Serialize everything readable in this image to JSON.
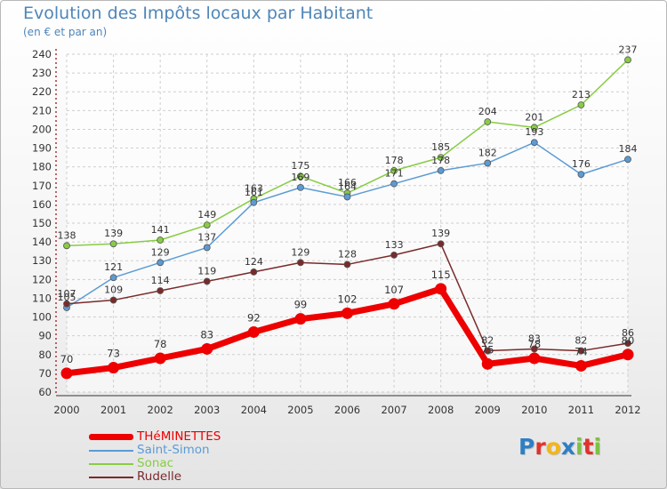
{
  "header": {
    "title": "Evolution des Impôts locaux par Habitant",
    "subtitle": "(en € et par an)"
  },
  "brand": {
    "name": "Proxiti",
    "letters": [
      {
        "ch": "P",
        "color": "#2e7fc4"
      },
      {
        "ch": "r",
        "color": "#e0322c"
      },
      {
        "ch": "o",
        "color": "#f3b51b"
      },
      {
        "ch": "x",
        "color": "#2e7fc4"
      },
      {
        "ch": "i",
        "color": "#7cc242"
      },
      {
        "ch": "t",
        "color": "#e0322c"
      },
      {
        "ch": "i",
        "color": "#7cc242"
      }
    ]
  },
  "chart_data": {
    "type": "line",
    "title": "Evolution des Impôts locaux par Habitant",
    "subtitle": "(en € et par an)",
    "xlabel": "",
    "ylabel": "",
    "x": [
      2000,
      2001,
      2002,
      2003,
      2004,
      2005,
      2006,
      2007,
      2008,
      2009,
      2010,
      2011,
      2012
    ],
    "x_tick_labels": [
      "2000",
      "2001",
      "2002",
      "2003",
      "2004",
      "2005",
      "2006",
      "2007",
      "2008",
      "2009",
      "2010",
      "2011",
      "2012"
    ],
    "ylim": [
      60,
      240
    ],
    "y_ticks": [
      60,
      70,
      80,
      90,
      100,
      110,
      120,
      130,
      140,
      150,
      160,
      170,
      180,
      190,
      200,
      210,
      220,
      230,
      240
    ],
    "grid": true,
    "legend_position": "bottom-left",
    "series": [
      {
        "name": "Sonac",
        "color": "#88cc44",
        "values": [
          138,
          139,
          141,
          149,
          163,
          175,
          166,
          178,
          185,
          204,
          201,
          213,
          237
        ],
        "labels": [
          "138",
          "139",
          "141",
          "149",
          "163",
          "175",
          "166",
          "178",
          "185",
          "204",
          "201",
          "213",
          "237"
        ]
      },
      {
        "name": "Saint-Simon",
        "color": "#5b9bd5",
        "values": [
          105,
          121,
          129,
          137,
          161,
          169,
          164,
          171,
          178,
          182,
          193,
          176,
          184
        ],
        "labels": [
          "105",
          "121",
          "129",
          "137",
          "161",
          "169",
          "164",
          "171",
          "178",
          "182",
          "193",
          "176",
          "184"
        ]
      },
      {
        "name": "Rudelle",
        "color": "#7a2a2a",
        "values": [
          107,
          109,
          114,
          119,
          124,
          129,
          128,
          133,
          139,
          82,
          83,
          82,
          86
        ],
        "labels": [
          "107",
          "109",
          "114",
          "119",
          "124",
          "129",
          "128",
          "133",
          "139",
          "82",
          "83",
          "82",
          "86"
        ]
      },
      {
        "name": "THéMINETTES",
        "color": "#ee0000",
        "values": [
          70,
          73,
          78,
          83,
          92,
          99,
          102,
          107,
          115,
          75,
          78,
          74,
          80
        ],
        "labels": [
          "70",
          "73",
          "78",
          "83",
          "92",
          "99",
          "102",
          "107",
          "115",
          "75",
          "78",
          "74",
          "80"
        ]
      }
    ],
    "legend": [
      {
        "name": "THéMINETTES",
        "color": "#ee0000",
        "thick": true
      },
      {
        "name": "Saint-Simon",
        "color": "#5b9bd5",
        "thick": false
      },
      {
        "name": "Sonac",
        "color": "#88cc44",
        "thick": false
      },
      {
        "name": "Rudelle",
        "color": "#7a2a2a",
        "thick": false
      }
    ]
  }
}
